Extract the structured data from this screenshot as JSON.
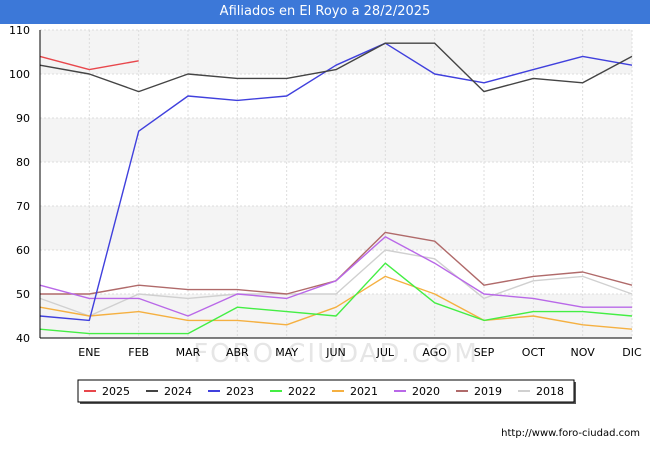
{
  "chart_data": {
    "type": "line",
    "title": "Afiliados en El Royo a 28/2/2025",
    "categories": [
      "",
      "ENE",
      "FEB",
      "MAR",
      "ABR",
      "MAY",
      "JUN",
      "JUL",
      "AGO",
      "SEP",
      "OCT",
      "NOV",
      "DIC"
    ],
    "ylim": [
      40,
      110
    ],
    "yticks": [
      40,
      50,
      60,
      70,
      80,
      90,
      100,
      110
    ],
    "xlabel": "",
    "ylabel": "",
    "grid": true,
    "legend_position": "bottom",
    "series": [
      {
        "name": "2025",
        "color": "#e8474c",
        "values": [
          104,
          101,
          103,
          null,
          null,
          null,
          null,
          null,
          null,
          null,
          null,
          null,
          null
        ]
      },
      {
        "name": "2024",
        "color": "#444444",
        "values": [
          102,
          100,
          96,
          100,
          99,
          99,
          101,
          107,
          107,
          96,
          99,
          98,
          104
        ]
      },
      {
        "name": "2023",
        "color": "#4040dd",
        "values": [
          45,
          44,
          87,
          95,
          94,
          95,
          102,
          107,
          100,
          98,
          101,
          104,
          102
        ]
      },
      {
        "name": "2022",
        "color": "#44ee44",
        "values": [
          42,
          41,
          41,
          41,
          47,
          46,
          45,
          57,
          48,
          44,
          46,
          46,
          45
        ]
      },
      {
        "name": "2021",
        "color": "#f5b041",
        "values": [
          47,
          45,
          46,
          44,
          44,
          43,
          47,
          54,
          50,
          44,
          45,
          43,
          42
        ]
      },
      {
        "name": "2020",
        "color": "#b968e8",
        "values": [
          52,
          49,
          49,
          45,
          50,
          49,
          53,
          63,
          57,
          50,
          49,
          47,
          47
        ]
      },
      {
        "name": "2019",
        "color": "#b06a6a",
        "values": [
          50,
          50,
          52,
          51,
          51,
          50,
          53,
          64,
          62,
          52,
          54,
          55,
          52
        ]
      },
      {
        "name": "2018",
        "color": "#d0d0d0",
        "values": [
          49,
          45,
          50,
          49,
          50,
          50,
          50,
          60,
          58,
          49,
          53,
          54,
          50
        ]
      }
    ]
  },
  "footer": {
    "url": "http://www.foro-ciudad.com"
  },
  "watermark": {
    "text": "FORO-CIUDAD.COM"
  }
}
